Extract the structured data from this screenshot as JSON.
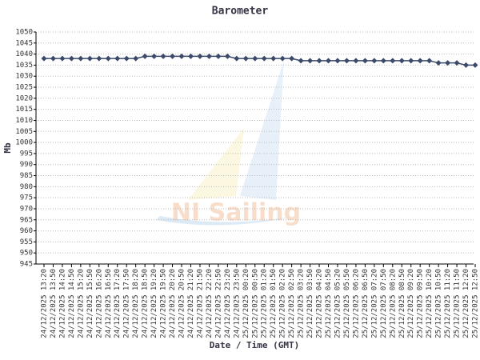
{
  "chart_data": {
    "type": "line",
    "title": "Barometer",
    "x_label": "Date / Time (GMT)",
    "y_label": "Mb",
    "watermark": "NI Sailing",
    "categories": [
      "24/12/2025 13:20",
      "24/12/2025 13:50",
      "24/12/2025 14:20",
      "24/12/2025 14:50",
      "24/12/2025 15:20",
      "24/12/2025 15:50",
      "24/12/2025 16:20",
      "24/12/2025 16:50",
      "24/12/2025 17:20",
      "24/12/2025 17:50",
      "24/12/2025 18:20",
      "24/12/2025 18:50",
      "24/12/2025 19:20",
      "24/12/2025 19:50",
      "24/12/2025 20:20",
      "24/12/2025 20:50",
      "24/12/2025 21:20",
      "24/12/2025 21:50",
      "24/12/2025 22:20",
      "24/12/2025 22:50",
      "24/12/2025 23:20",
      "24/12/2025 23:50",
      "25/12/2025 00:20",
      "25/12/2025 00:50",
      "25/12/2025 01:20",
      "25/12/2025 01:50",
      "25/12/2025 02:20",
      "25/12/2025 02:50",
      "25/12/2025 03:20",
      "25/12/2025 03:50",
      "25/12/2025 04:20",
      "25/12/2025 04:50",
      "25/12/2025 05:20",
      "25/12/2025 05:50",
      "25/12/2025 06:20",
      "25/12/2025 06:50",
      "25/12/2025 07:20",
      "25/12/2025 07:50",
      "25/12/2025 08:20",
      "25/12/2025 08:50",
      "25/12/2025 09:20",
      "25/12/2025 09:50",
      "25/12/2025 10:20",
      "25/12/2025 10:50",
      "25/12/2025 11:20",
      "25/12/2025 11:50",
      "25/12/2025 12:20",
      "25/12/2025 12:50"
    ],
    "values": [
      1038,
      1038,
      1038,
      1038,
      1038,
      1038,
      1038,
      1038,
      1038,
      1038,
      1038,
      1039,
      1039,
      1039,
      1039,
      1039,
      1039,
      1039,
      1039,
      1039,
      1039,
      1038,
      1038,
      1038,
      1038,
      1038,
      1038,
      1038,
      1037,
      1037,
      1037,
      1037,
      1037,
      1037,
      1037,
      1037,
      1037,
      1037,
      1037,
      1037,
      1037,
      1037,
      1037,
      1036,
      1036,
      1036,
      1035,
      1035
    ],
    "color": "#3b4a6b",
    "ylim": [
      945,
      1050
    ],
    "yticks": [
      945,
      950,
      955,
      960,
      965,
      970,
      975,
      980,
      985,
      990,
      995,
      1000,
      1005,
      1010,
      1015,
      1020,
      1025,
      1030,
      1035,
      1040,
      1045,
      1050
    ],
    "grid": true
  }
}
